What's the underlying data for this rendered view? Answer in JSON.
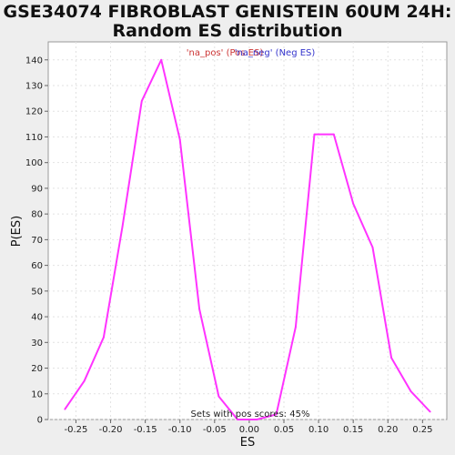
{
  "chart_data": {
    "type": "line",
    "title_line1": "GSE34074 FIBROBLAST GENISTEIN 60UM 24H:",
    "title_line2": "Random ES distribution",
    "xlabel": "ES",
    "ylabel": "P(ES)",
    "xlim": [
      -0.29,
      0.285
    ],
    "ylim": [
      0,
      147
    ],
    "xticks": [
      -0.25,
      -0.2,
      -0.15,
      -0.1,
      -0.05,
      0.0,
      0.05,
      0.1,
      0.15,
      0.2,
      0.25
    ],
    "xtick_labels": [
      "-0.25",
      "-0.20",
      "-0.15",
      "-0.10",
      "-0.05",
      "0.00",
      "0.05",
      "0.10",
      "0.15",
      "0.20",
      "0.25"
    ],
    "yticks": [
      0,
      10,
      20,
      30,
      40,
      50,
      60,
      70,
      80,
      90,
      100,
      110,
      120,
      130,
      140
    ],
    "grid": true,
    "legend_position": "top",
    "legend": [
      {
        "label": "'na_pos' (Pos ES)",
        "color": "#cc3333"
      },
      {
        "label": "'na_neg' (Neg ES)",
        "color": "#3333cc"
      }
    ],
    "annotation": "Sets with pos scores: 45%",
    "series": [
      {
        "color": "#ff33ff",
        "x": [
          -0.266,
          -0.238,
          -0.21,
          -0.183,
          -0.155,
          -0.127,
          -0.1,
          -0.072,
          -0.044,
          -0.017,
          0.011,
          0.039,
          0.067,
          0.094,
          0.122,
          0.15,
          0.178,
          0.205,
          0.233,
          0.261
        ],
        "y": [
          4,
          15,
          32,
          75,
          124,
          140,
          109,
          43,
          9,
          0,
          0,
          2,
          36,
          111,
          111,
          84,
          67,
          24,
          11,
          3
        ]
      }
    ]
  }
}
